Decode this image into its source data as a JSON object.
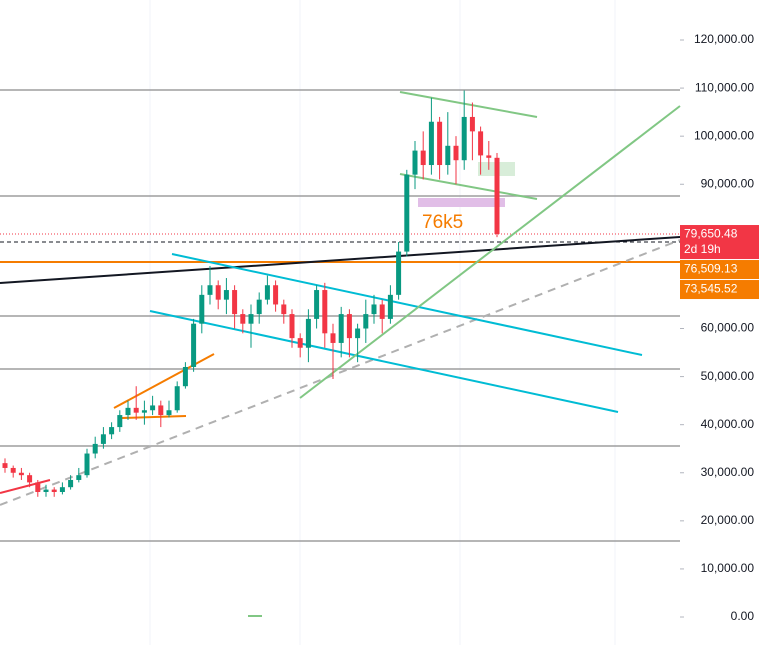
{
  "chart_data": {
    "type": "candlestick",
    "open": [
      32000,
      31000,
      30000,
      29500,
      28000,
      26000,
      26500,
      26000,
      27000,
      28500,
      29500,
      34000,
      36000,
      38000,
      39500,
      42000,
      43500,
      42500,
      43000,
      44000,
      42000,
      43000,
      48000,
      52000,
      61000,
      67000,
      69000,
      66000,
      68000,
      63000,
      61000,
      63000,
      66000,
      69000,
      65000,
      63000,
      58000,
      56000,
      62000,
      68000,
      59000,
      57000,
      63000,
      58000,
      60000,
      63000,
      65000,
      62000,
      67000,
      76000,
      92000,
      97000,
      94000,
      103000,
      94000,
      98000,
      95000,
      104000,
      101000,
      96000,
      95500
    ],
    "high": [
      33000,
      31500,
      31000,
      30000,
      28500,
      27500,
      27000,
      28000,
      29500,
      31000,
      35000,
      37500,
      39500,
      40500,
      43000,
      45000,
      48000,
      45000,
      46000,
      45000,
      45000,
      49000,
      53000,
      62000,
      69000,
      73000,
      70000,
      70500,
      69000,
      64000,
      65000,
      67500,
      71000,
      70000,
      66000,
      64000,
      59000,
      64000,
      69000,
      69500,
      61000,
      64500,
      64000,
      61000,
      66000,
      67000,
      66000,
      69000,
      78000,
      93000,
      99000,
      101000,
      108000,
      104000,
      105000,
      100000,
      109500,
      107000,
      102000,
      99000,
      96500
    ],
    "low": [
      30000,
      29000,
      28500,
      27000,
      25000,
      25000,
      25000,
      25500,
      26500,
      28000,
      29000,
      33000,
      35000,
      37000,
      38500,
      41000,
      41000,
      40000,
      42000,
      39500,
      41500,
      42500,
      47500,
      51000,
      59000,
      65000,
      64000,
      63000,
      60000,
      59000,
      56000,
      61000,
      65000,
      63500,
      61000,
      56000,
      54000,
      53000,
      60000,
      56000,
      49500,
      54000,
      54000,
      53000,
      57000,
      61000,
      59000,
      61000,
      66000,
      75000,
      89000,
      91000,
      92000,
      91000,
      92000,
      90000,
      93000,
      95000,
      92000,
      93000,
      79000
    ],
    "close": [
      31000,
      30000,
      29500,
      28000,
      26000,
      26500,
      26000,
      27000,
      28500,
      29500,
      34000,
      36000,
      38000,
      39500,
      42000,
      43500,
      42500,
      43000,
      44000,
      42000,
      43000,
      48000,
      52000,
      61000,
      67000,
      69000,
      66000,
      68000,
      63000,
      61000,
      63000,
      66000,
      69000,
      65000,
      63000,
      58000,
      56000,
      62000,
      68000,
      59000,
      57000,
      63000,
      58000,
      60000,
      63000,
      65000,
      62000,
      67000,
      76000,
      92000,
      97000,
      94000,
      103000,
      94000,
      98000,
      95000,
      104000,
      101000,
      96000,
      95500,
      79650.48
    ],
    "up_color": "#089981",
    "down_color": "#f23645",
    "ylim": [
      -5820,
      128320
    ],
    "yticks": [
      {
        "value": 0,
        "label": "0.00"
      },
      {
        "value": 10000,
        "label": "10,000.00"
      },
      {
        "value": 20000,
        "label": "20,000.00"
      },
      {
        "value": 30000,
        "label": "30,000.00"
      },
      {
        "value": 40000,
        "label": "40,000.00"
      },
      {
        "value": 50000,
        "label": "50,000.00"
      },
      {
        "value": 60000,
        "label": "60,000.00"
      },
      {
        "value": 90000,
        "label": "90,000.00"
      },
      {
        "value": 100000,
        "label": "100,000.00"
      },
      {
        "value": 110000,
        "label": "110,000.00"
      },
      {
        "value": 120000,
        "label": "120,000.00"
      }
    ],
    "price_labels": [
      {
        "value": 79650.48,
        "label": "79,650.48",
        "color": "#f23645"
      },
      {
        "value": 76509.13,
        "label": "76,509.13",
        "color": "#f57c00"
      },
      {
        "value": 73545.52,
        "label": "73,545.52",
        "color": "#f57c00"
      }
    ],
    "countdown": "2d 19h",
    "annotation": "76k5"
  }
}
